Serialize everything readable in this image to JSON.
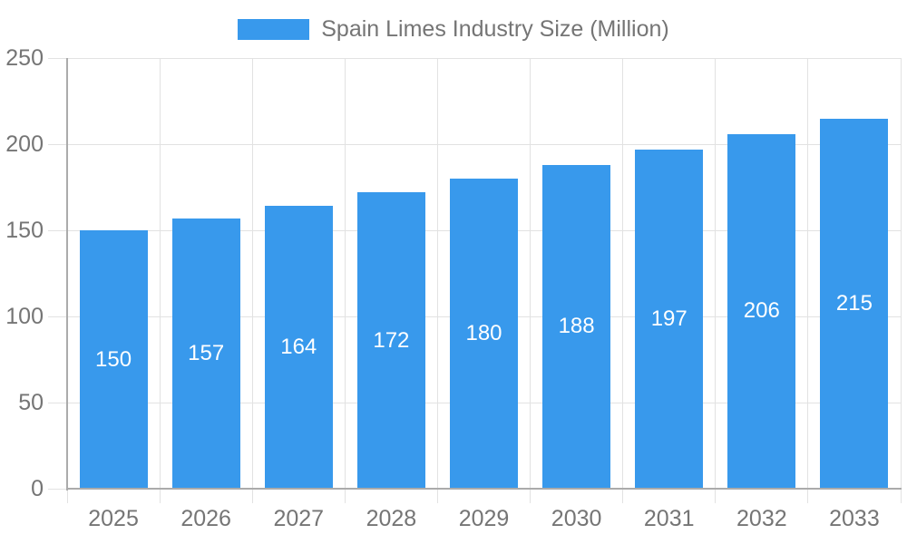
{
  "legend": {
    "label": "Spain Limes Industry Size (Million)"
  },
  "chart_data": {
    "type": "bar",
    "title": "Spain Limes Industry Size (Million)",
    "categories": [
      "2025",
      "2026",
      "2027",
      "2028",
      "2029",
      "2030",
      "2031",
      "2032",
      "2033"
    ],
    "values": [
      150,
      157,
      164,
      172,
      180,
      188,
      197,
      206,
      215
    ],
    "series": [
      {
        "name": "Spain Limes Industry Size (Million)",
        "values": [
          150,
          157,
          164,
          172,
          180,
          188,
          197,
          206,
          215
        ]
      }
    ],
    "xlabel": "",
    "ylabel": "",
    "ylim": [
      0,
      250
    ],
    "yticks": [
      0,
      50,
      100,
      150,
      200,
      250
    ],
    "grid": true,
    "legend_position": "top-center",
    "value_label_position": "inside-center"
  },
  "colors": {
    "bar": "#3899EC",
    "bar_label": "#FFFFFF",
    "axis_text": "#757575",
    "axis_line": "#ABABAB",
    "gridline": "#E2E2E2",
    "background": "#FFFFFF"
  }
}
